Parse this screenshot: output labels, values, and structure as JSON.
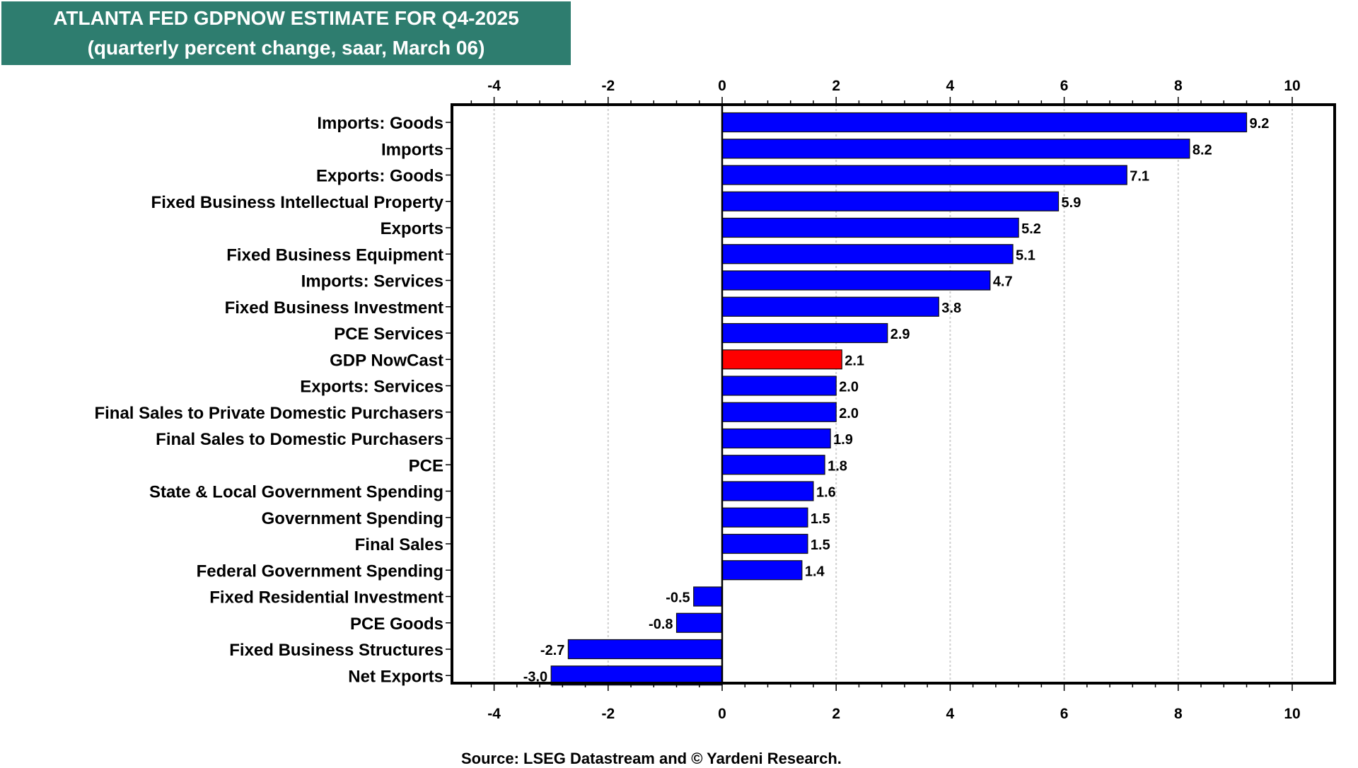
{
  "header": {
    "title": "ATLANTA FED GDPNOW ESTIMATE FOR Q4-2025",
    "subtitle": "(quarterly percent change, saar, March 06)"
  },
  "footer": {
    "source": "Source: LSEG Datastream and © Yardeni Research."
  },
  "colors": {
    "title_bg": "#2E7D6F",
    "bar": "#0000FF",
    "highlight_bar": "#FF0000",
    "grid": "#D0D0D0"
  },
  "chart_data": {
    "type": "bar",
    "orientation": "horizontal",
    "title": "ATLANTA FED GDPNOW ESTIMATE FOR Q4-2025",
    "subtitle": "(quarterly percent change, saar, March 06)",
    "xlabel": "",
    "ylabel": "",
    "xlim": [
      -5,
      10.8
    ],
    "xticks": [
      -4,
      -2,
      0,
      2,
      4,
      6,
      8,
      10
    ],
    "xtick_labels": [
      "-4",
      "-2",
      "0",
      "2",
      "4",
      "6",
      "8",
      "10"
    ],
    "grid": "vertical dotted at major ticks",
    "highlight": "GDP NowCast",
    "categories": [
      "Imports: Goods",
      "Imports",
      "Exports: Goods",
      "Fixed Business Intellectual Property",
      "Exports",
      "Fixed Business Equipment",
      "Imports: Services",
      "Fixed Business Investment",
      "PCE Services",
      "GDP NowCast",
      "Exports: Services",
      "Final Sales to Private Domestic Purchasers",
      "Final Sales to Domestic Purchasers",
      "PCE",
      "State & Local Government Spending",
      "Government Spending",
      "Final Sales",
      "Federal Government Spending",
      "Fixed Residential Investment",
      "PCE Goods",
      "Fixed Business Structures",
      "Net Exports"
    ],
    "values": [
      9.2,
      8.2,
      7.1,
      5.9,
      5.2,
      5.1,
      4.7,
      3.8,
      2.9,
      2.1,
      2.0,
      2.0,
      1.9,
      1.8,
      1.6,
      1.5,
      1.5,
      1.4,
      -0.5,
      -0.8,
      -2.7,
      -3.0
    ],
    "value_labels": [
      "9.2",
      "8.2",
      "7.1",
      "5.9",
      "5.2",
      "5.1",
      "4.7",
      "3.8",
      "2.9",
      "2.1",
      "2.0",
      "2.0",
      "1.9",
      "1.8",
      "1.6",
      "1.5",
      "1.5",
      "1.4",
      "-0.5",
      "-0.8",
      "-2.7",
      "-3.0"
    ]
  }
}
